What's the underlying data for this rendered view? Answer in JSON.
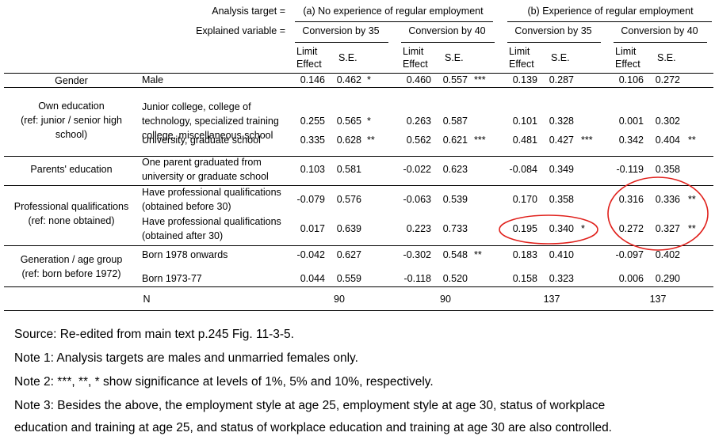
{
  "header": {
    "analysis_label": "Analysis target =",
    "explained_label": "Explained variable =",
    "group_a": "(a) No experience of regular employment",
    "group_b": "(b) Experience of regular employment",
    "conv35": "Conversion by 35",
    "conv40": "Conversion by 40",
    "limit": "Limit",
    "effect": "Effect",
    "se": "S.E."
  },
  "groups": [
    {
      "label": [
        "Gender"
      ]
    },
    {
      "label": [
        "Own education",
        "(ref: junior / senior high",
        "school)"
      ]
    },
    {
      "label": [
        "Parents' education"
      ]
    },
    {
      "label": [
        "Professional qualifications",
        "(ref: none obtained)"
      ]
    },
    {
      "label": [
        "Generation / age group",
        "(ref: born before 1972)"
      ]
    }
  ],
  "rows": [
    {
      "label": [
        "Male"
      ],
      "vals": [
        "0.146",
        "0.462",
        "*",
        "0.460",
        "0.557",
        "***",
        "0.139",
        "0.287",
        "",
        "0.106",
        "0.272",
        ""
      ]
    },
    {
      "label": [
        "Junior college, college of",
        "technology, specialized training",
        "college, miscellaneous school"
      ],
      "vals": [
        "0.255",
        "0.565",
        "*",
        "0.263",
        "0.587",
        "",
        "0.101",
        "0.328",
        "",
        "0.001",
        "0.302",
        ""
      ]
    },
    {
      "label": [
        "University, graduate school"
      ],
      "vals": [
        "0.335",
        "0.628",
        "**",
        "0.562",
        "0.621",
        "***",
        "0.481",
        "0.427",
        "***",
        "0.342",
        "0.404",
        "**"
      ]
    },
    {
      "label": [
        "One parent graduated from",
        "university or graduate school"
      ],
      "vals": [
        "0.103",
        "0.581",
        "",
        "-0.022",
        "0.623",
        "",
        "-0.084",
        "0.349",
        "",
        "-0.119",
        "0.358",
        ""
      ]
    },
    {
      "label": [
        "Have professional qualifications",
        "(obtained before 30)"
      ],
      "vals": [
        "-0.079",
        "0.576",
        "",
        "-0.063",
        "0.539",
        "",
        "0.170",
        "0.358",
        "",
        "0.316",
        "0.336",
        "**"
      ]
    },
    {
      "label": [
        "Have professional qualifications",
        "(obtained after 30)"
      ],
      "vals": [
        "0.017",
        "0.639",
        "",
        "0.223",
        "0.733",
        "",
        "0.195",
        "0.340",
        "*",
        "0.272",
        "0.327",
        "**"
      ]
    },
    {
      "label": [
        "Born 1978 onwards"
      ],
      "vals": [
        "-0.042",
        "0.627",
        "",
        "-0.302",
        "0.548",
        "**",
        "0.183",
        "0.410",
        "",
        "-0.097",
        "0.402",
        ""
      ]
    },
    {
      "label": [
        "Born 1973-77"
      ],
      "vals": [
        "0.044",
        "0.559",
        "",
        "-0.118",
        "0.520",
        "",
        "0.158",
        "0.323",
        "",
        "0.006",
        "0.290",
        ""
      ]
    }
  ],
  "n_row": {
    "label": "N",
    "values": [
      "90",
      "90",
      "137",
      "137"
    ]
  },
  "notes": [
    "Source: Re-edited from main text p.245 Fig. 11-3-5.",
    "Note 1: Analysis targets are males and unmarried females only.",
    "Note 2: ***, **, * show significance at levels of 1%, 5% and 10%, respectively.",
    "Note 3: Besides the above, the employment style at age 25, employment style at age 30, status of workplace",
    "education and training at age 25, and status of workplace education and training at age 30 are also controlled."
  ],
  "annotation_color": "#e0201b"
}
